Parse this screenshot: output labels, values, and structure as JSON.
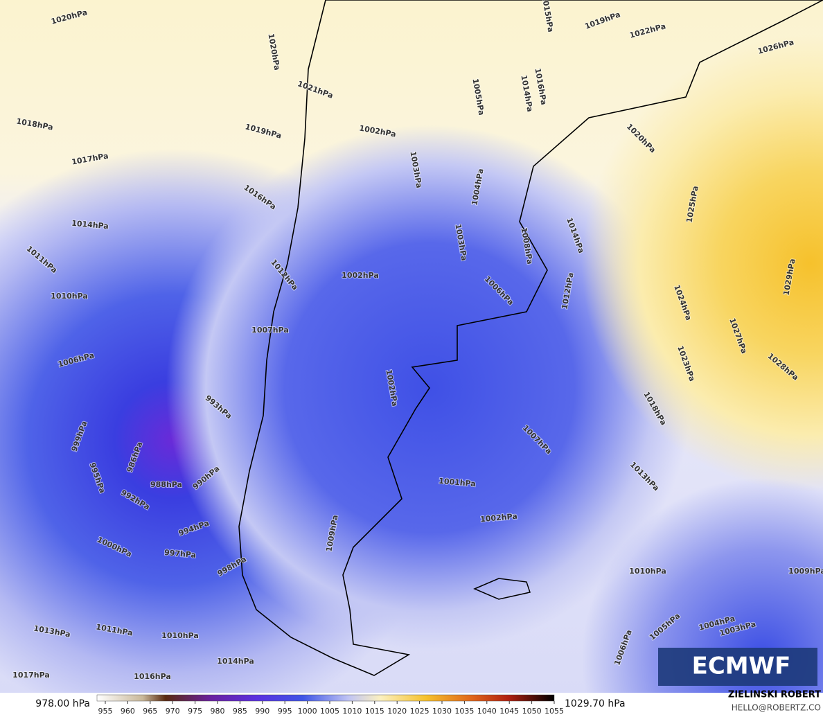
{
  "map": {
    "labels": [
      "1020hPa",
      "1020hPa",
      "1021hPa",
      "1019hPa",
      "1018hPa",
      "1017hPa",
      "1016hPa",
      "1014hPa",
      "1011hPa",
      "1010hPa",
      "1006hPa",
      "1007hPa",
      "1012hPa",
      "999hPa",
      "995hPa",
      "992hPa",
      "988hPa",
      "986hPa",
      "993hPa",
      "990hPa",
      "994hPa",
      "997hPa",
      "998hPa",
      "1000hPa",
      "1013hPa",
      "1011hPa",
      "1010hPa",
      "1014hPa",
      "1017hPa",
      "1016hPa",
      "1002hPa",
      "1002hPa",
      "1005hPa",
      "1004hPa",
      "1003hPa",
      "1003hPa",
      "1006hPa",
      "1008hPa",
      "1012hPa",
      "1014hPa",
      "1002hPa",
      "1007hPa",
      "1001hPa",
      "1002hPa",
      "1009hPa",
      "1010hPa",
      "1009hPa",
      "1013hPa",
      "1018hPa",
      "1023hPa",
      "1024hPa",
      "1027hPa",
      "1028hPa",
      "1029hPa",
      "1025hPa",
      "1026hPa",
      "1022hPa",
      "1019hPa",
      "1020hPa",
      "1015hPa",
      "1016hPa",
      "1014hPa",
      "1005hPa",
      "1006hPa",
      "1004hPa",
      "1003hPa"
    ]
  },
  "colorbar": {
    "min_label": "978.00 hPa",
    "max_label": "1029.70 hPa",
    "ticks": [
      955,
      960,
      965,
      970,
      975,
      980,
      985,
      990,
      995,
      1000,
      1005,
      1010,
      1015,
      1020,
      1025,
      1030,
      1035,
      1040,
      1045,
      1050,
      1055
    ]
  },
  "logo": "ECMWF",
  "credit": {
    "name": "ZIELINSKI ROBERT",
    "email": "HELLO@ROBERTZ.CO"
  }
}
